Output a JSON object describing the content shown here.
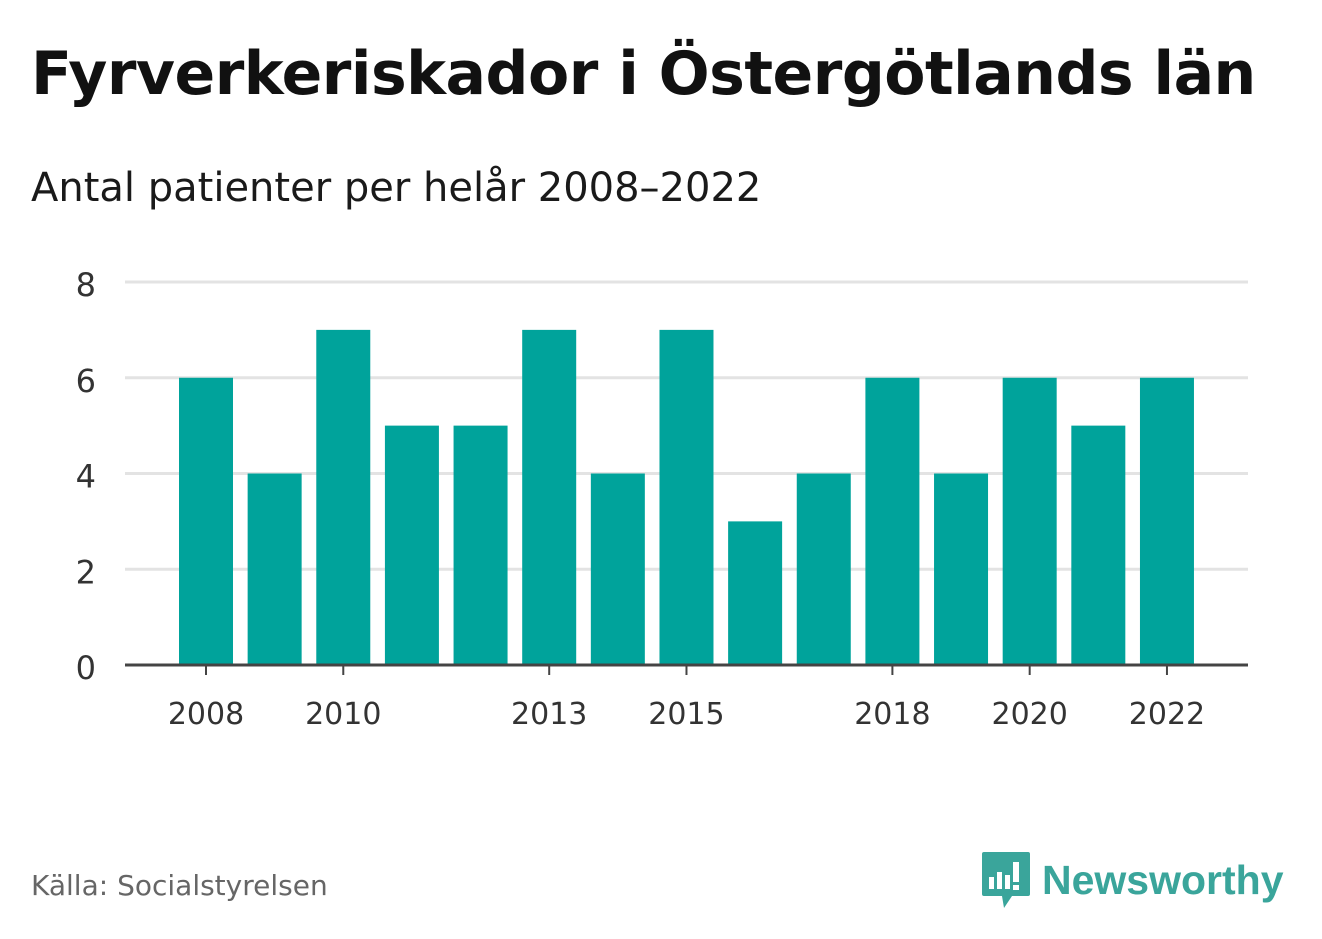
{
  "title": "Fyrverkeriskador i Östergötlands län",
  "subtitle": "Antal patienter per helår 2008–2022",
  "source": "Källa: Socialstyrelsen",
  "brand": {
    "name": "Newsworthy",
    "logo_icon": "newsworthy-logo-icon",
    "color": "#3aa59b"
  },
  "colors": {
    "bar": "#00a39b",
    "grid": "#e3e3e3",
    "axis": "#444444",
    "tick_text": "#333333"
  },
  "chart_data": {
    "type": "bar",
    "categories": [
      "2008",
      "2009",
      "2010",
      "2011",
      "2012",
      "2013",
      "2014",
      "2015",
      "2016",
      "2017",
      "2018",
      "2019",
      "2020",
      "2021",
      "2022"
    ],
    "values": [
      6,
      4,
      7,
      5,
      5,
      7,
      4,
      7,
      3,
      4,
      6,
      4,
      6,
      5,
      6
    ],
    "x_tick_labels": [
      "2008",
      "2010",
      "2013",
      "2015",
      "2018",
      "2020",
      "2022"
    ],
    "y_ticks": [
      0,
      2,
      4,
      6,
      8
    ],
    "ylim": [
      0,
      8
    ],
    "xlabel": "",
    "ylabel": "",
    "grid": true
  }
}
